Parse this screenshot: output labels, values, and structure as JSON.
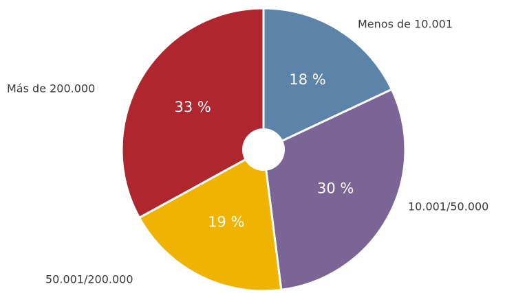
{
  "chart_data": {
    "type": "pie",
    "categories": [
      "Menos de 10.001",
      "10.001/50.000",
      "50.001/200.000",
      "Más de 200.000"
    ],
    "values": [
      18,
      30,
      19,
      33
    ],
    "value_labels": [
      "18 %",
      "30 %",
      "19 %",
      "33 %"
    ],
    "colors": [
      "#5b84a8",
      "#7b6496",
      "#f0b400",
      "#b0262e"
    ]
  }
}
